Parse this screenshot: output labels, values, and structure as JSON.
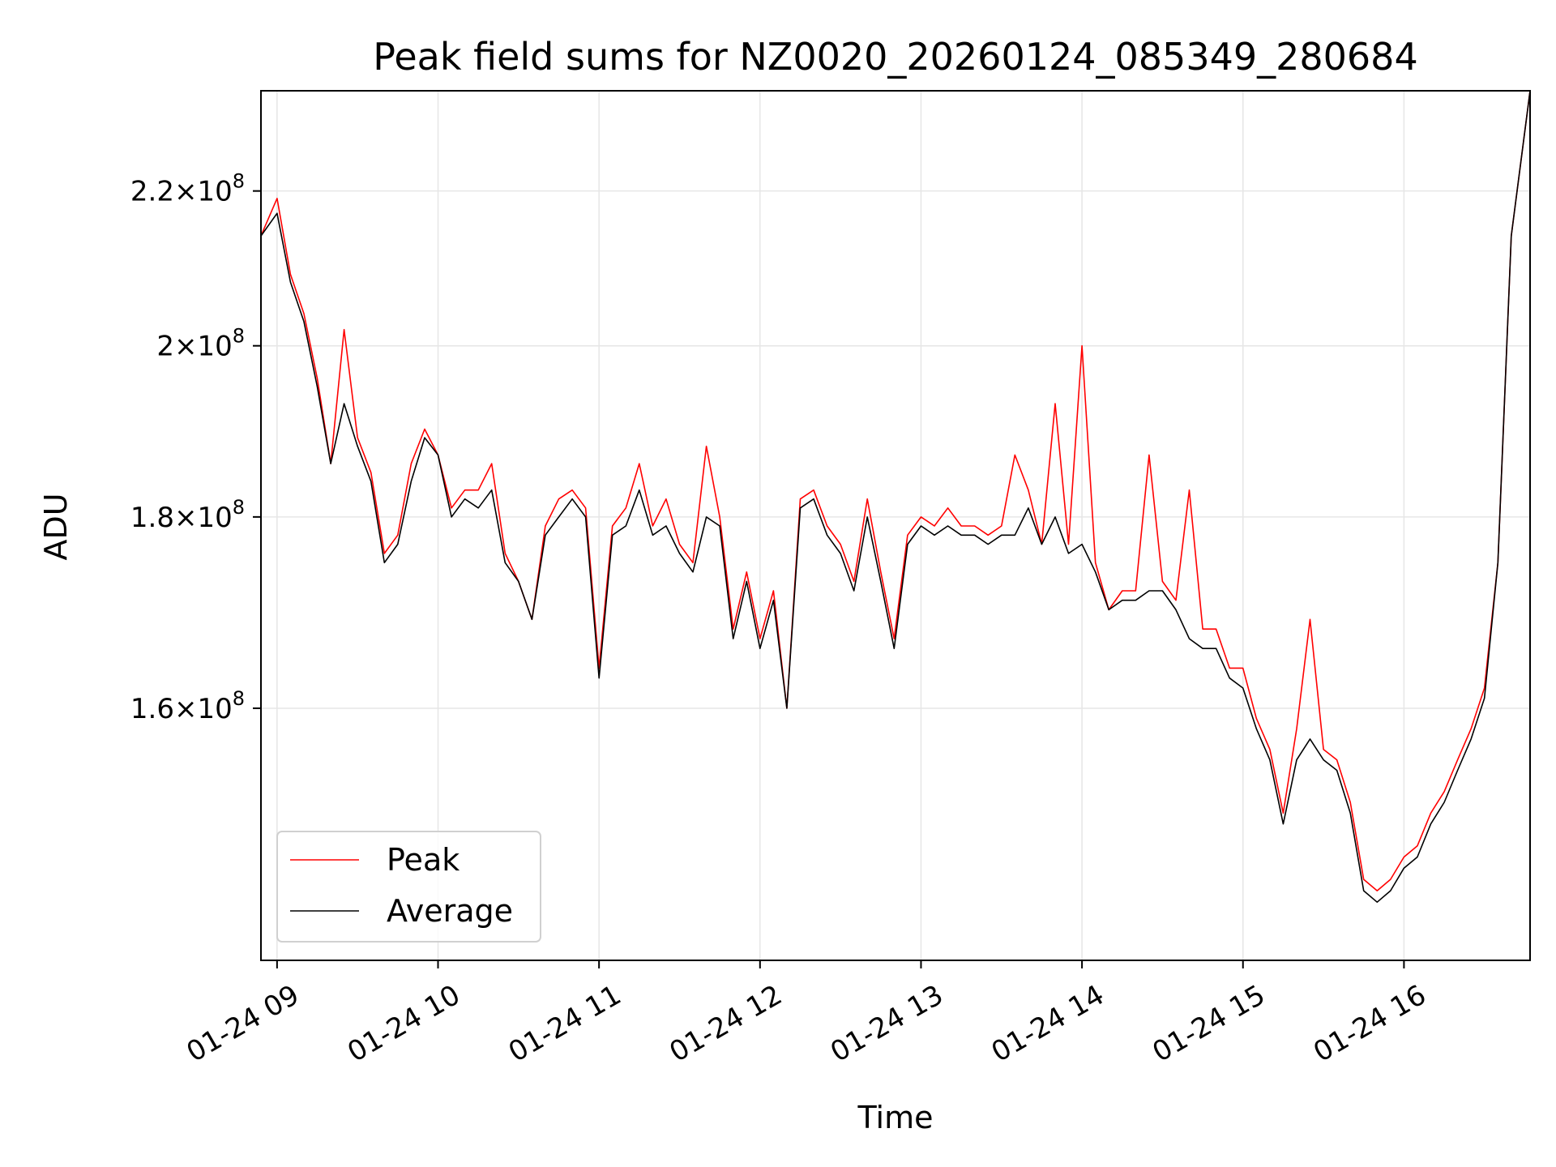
{
  "chart_data": {
    "type": "line",
    "title": "Peak field sums for NZ0020_20260124_085349_280684",
    "xlabel": "Time",
    "ylabel": "ADU",
    "y_scale": "log",
    "ylim": [
      137000000,
      234000000
    ],
    "xlim": [
      "2026-01-24 08:54",
      "2026-01-24 16:47"
    ],
    "x_ticks": [
      {
        "time": "2026-01-24 09:00",
        "label": "01-24 09"
      },
      {
        "time": "2026-01-24 10:00",
        "label": "01-24 10"
      },
      {
        "time": "2026-01-24 11:00",
        "label": "01-24 11"
      },
      {
        "time": "2026-01-24 12:00",
        "label": "01-24 12"
      },
      {
        "time": "2026-01-24 13:00",
        "label": "01-24 13"
      },
      {
        "time": "2026-01-24 14:00",
        "label": "01-24 14"
      },
      {
        "time": "2026-01-24 15:00",
        "label": "01-24 15"
      },
      {
        "time": "2026-01-24 16:00",
        "label": "01-24 16"
      }
    ],
    "y_ticks": [
      {
        "value": 160000000,
        "mantissa": "1.6",
        "exp": "8"
      },
      {
        "value": 180000000,
        "mantissa": "1.8",
        "exp": "8"
      },
      {
        "value": 200000000,
        "mantissa": "2",
        "exp": "8"
      },
      {
        "value": 220000000,
        "mantissa": "2.2",
        "exp": "8"
      }
    ],
    "grid": true,
    "legend_position": "lower-left",
    "series": [
      {
        "name": "Peak",
        "color": "#ff0000",
        "x": [
          "2026-01-24 08:54",
          "2026-01-24 09:00",
          "2026-01-24 09:05",
          "2026-01-24 09:10",
          "2026-01-24 09:15",
          "2026-01-24 09:20",
          "2026-01-24 09:25",
          "2026-01-24 09:30",
          "2026-01-24 09:35",
          "2026-01-24 09:40",
          "2026-01-24 09:45",
          "2026-01-24 09:50",
          "2026-01-24 09:55",
          "2026-01-24 10:00",
          "2026-01-24 10:05",
          "2026-01-24 10:10",
          "2026-01-24 10:15",
          "2026-01-24 10:20",
          "2026-01-24 10:25",
          "2026-01-24 10:30",
          "2026-01-24 10:35",
          "2026-01-24 10:40",
          "2026-01-24 10:45",
          "2026-01-24 10:50",
          "2026-01-24 10:55",
          "2026-01-24 11:00",
          "2026-01-24 11:05",
          "2026-01-24 11:10",
          "2026-01-24 11:15",
          "2026-01-24 11:20",
          "2026-01-24 11:25",
          "2026-01-24 11:30",
          "2026-01-24 11:35",
          "2026-01-24 11:40",
          "2026-01-24 11:45",
          "2026-01-24 11:50",
          "2026-01-24 11:55",
          "2026-01-24 12:00",
          "2026-01-24 12:05",
          "2026-01-24 12:10",
          "2026-01-24 12:15",
          "2026-01-24 12:20",
          "2026-01-24 12:25",
          "2026-01-24 12:30",
          "2026-01-24 12:35",
          "2026-01-24 12:40",
          "2026-01-24 12:45",
          "2026-01-24 12:50",
          "2026-01-24 12:55",
          "2026-01-24 13:00",
          "2026-01-24 13:05",
          "2026-01-24 13:10",
          "2026-01-24 13:15",
          "2026-01-24 13:20",
          "2026-01-24 13:25",
          "2026-01-24 13:30",
          "2026-01-24 13:35",
          "2026-01-24 13:40",
          "2026-01-24 13:45",
          "2026-01-24 13:50",
          "2026-01-24 13:55",
          "2026-01-24 14:00",
          "2026-01-24 14:05",
          "2026-01-24 14:10",
          "2026-01-24 14:15",
          "2026-01-24 14:20",
          "2026-01-24 14:25",
          "2026-01-24 14:30",
          "2026-01-24 14:35",
          "2026-01-24 14:40",
          "2026-01-24 14:45",
          "2026-01-24 14:50",
          "2026-01-24 14:55",
          "2026-01-24 15:00",
          "2026-01-24 15:05",
          "2026-01-24 15:10",
          "2026-01-24 15:15",
          "2026-01-24 15:20",
          "2026-01-24 15:25",
          "2026-01-24 15:30",
          "2026-01-24 15:35",
          "2026-01-24 15:40",
          "2026-01-24 15:45",
          "2026-01-24 15:50",
          "2026-01-24 15:55",
          "2026-01-24 16:00",
          "2026-01-24 16:05",
          "2026-01-24 16:10",
          "2026-01-24 16:15",
          "2026-01-24 16:20",
          "2026-01-24 16:25",
          "2026-01-24 16:30",
          "2026-01-24 16:35",
          "2026-01-24 16:40",
          "2026-01-24 16:47"
        ],
        "values": [
          214000000,
          219000000,
          209000000,
          204000000,
          196000000,
          186000000,
          202000000,
          189000000,
          185000000,
          176000000,
          178000000,
          186000000,
          190000000,
          187000000,
          181000000,
          183000000,
          183000000,
          186000000,
          176000000,
          173000000,
          169000000,
          179000000,
          182000000,
          183000000,
          181000000,
          164000000,
          179000000,
          181000000,
          186000000,
          179000000,
          182000000,
          177000000,
          175000000,
          188000000,
          180000000,
          168000000,
          174000000,
          167000000,
          172000000,
          160000000,
          182000000,
          183000000,
          179000000,
          177000000,
          173000000,
          182000000,
          174000000,
          167000000,
          178000000,
          180000000,
          179000000,
          181000000,
          179000000,
          179000000,
          178000000,
          179000000,
          187000000,
          183000000,
          177000000,
          193000000,
          177000000,
          200000000,
          175000000,
          170000000,
          172000000,
          172000000,
          187000000,
          173000000,
          171000000,
          183000000,
          168000000,
          168000000,
          164000000,
          164000000,
          159000000,
          156000000,
          150000000,
          158000000,
          169000000,
          156000000,
          155000000,
          151000000,
          144000000,
          143000000,
          144000000,
          146000000,
          147000000,
          150000000,
          152000000,
          155000000,
          158000000,
          162000000,
          175000000,
          214000000,
          234000000
        ]
      },
      {
        "name": "Average",
        "color": "#000000",
        "x": [
          "2026-01-24 08:54",
          "2026-01-24 09:00",
          "2026-01-24 09:05",
          "2026-01-24 09:10",
          "2026-01-24 09:15",
          "2026-01-24 09:20",
          "2026-01-24 09:25",
          "2026-01-24 09:30",
          "2026-01-24 09:35",
          "2026-01-24 09:40",
          "2026-01-24 09:45",
          "2026-01-24 09:50",
          "2026-01-24 09:55",
          "2026-01-24 10:00",
          "2026-01-24 10:05",
          "2026-01-24 10:10",
          "2026-01-24 10:15",
          "2026-01-24 10:20",
          "2026-01-24 10:25",
          "2026-01-24 10:30",
          "2026-01-24 10:35",
          "2026-01-24 10:40",
          "2026-01-24 10:45",
          "2026-01-24 10:50",
          "2026-01-24 10:55",
          "2026-01-24 11:00",
          "2026-01-24 11:05",
          "2026-01-24 11:10",
          "2026-01-24 11:15",
          "2026-01-24 11:20",
          "2026-01-24 11:25",
          "2026-01-24 11:30",
          "2026-01-24 11:35",
          "2026-01-24 11:40",
          "2026-01-24 11:45",
          "2026-01-24 11:50",
          "2026-01-24 11:55",
          "2026-01-24 12:00",
          "2026-01-24 12:05",
          "2026-01-24 12:10",
          "2026-01-24 12:15",
          "2026-01-24 12:20",
          "2026-01-24 12:25",
          "2026-01-24 12:30",
          "2026-01-24 12:35",
          "2026-01-24 12:40",
          "2026-01-24 12:45",
          "2026-01-24 12:50",
          "2026-01-24 12:55",
          "2026-01-24 13:00",
          "2026-01-24 13:05",
          "2026-01-24 13:10",
          "2026-01-24 13:15",
          "2026-01-24 13:20",
          "2026-01-24 13:25",
          "2026-01-24 13:30",
          "2026-01-24 13:35",
          "2026-01-24 13:40",
          "2026-01-24 13:45",
          "2026-01-24 13:50",
          "2026-01-24 13:55",
          "2026-01-24 14:00",
          "2026-01-24 14:05",
          "2026-01-24 14:10",
          "2026-01-24 14:15",
          "2026-01-24 14:20",
          "2026-01-24 14:25",
          "2026-01-24 14:30",
          "2026-01-24 14:35",
          "2026-01-24 14:40",
          "2026-01-24 14:45",
          "2026-01-24 14:50",
          "2026-01-24 14:55",
          "2026-01-24 15:00",
          "2026-01-24 15:05",
          "2026-01-24 15:10",
          "2026-01-24 15:15",
          "2026-01-24 15:20",
          "2026-01-24 15:25",
          "2026-01-24 15:30",
          "2026-01-24 15:35",
          "2026-01-24 15:40",
          "2026-01-24 15:45",
          "2026-01-24 15:50",
          "2026-01-24 15:55",
          "2026-01-24 16:00",
          "2026-01-24 16:05",
          "2026-01-24 16:10",
          "2026-01-24 16:15",
          "2026-01-24 16:20",
          "2026-01-24 16:25",
          "2026-01-24 16:30",
          "2026-01-24 16:35",
          "2026-01-24 16:40",
          "2026-01-24 16:47"
        ],
        "values": [
          214000000,
          217000000,
          208000000,
          203000000,
          195000000,
          186000000,
          193000000,
          188000000,
          184000000,
          175000000,
          177000000,
          184000000,
          189000000,
          187000000,
          180000000,
          182000000,
          181000000,
          183000000,
          175000000,
          173000000,
          169000000,
          178000000,
          180000000,
          182000000,
          180000000,
          163000000,
          178000000,
          179000000,
          183000000,
          178000000,
          179000000,
          176000000,
          174000000,
          180000000,
          179000000,
          167000000,
          173000000,
          166000000,
          171000000,
          160000000,
          181000000,
          182000000,
          178000000,
          176000000,
          172000000,
          180000000,
          173000000,
          166000000,
          177000000,
          179000000,
          178000000,
          179000000,
          178000000,
          178000000,
          177000000,
          178000000,
          178000000,
          181000000,
          177000000,
          180000000,
          176000000,
          177000000,
          174000000,
          170000000,
          171000000,
          171000000,
          172000000,
          172000000,
          170000000,
          167000000,
          166000000,
          166000000,
          163000000,
          162000000,
          158000000,
          155000000,
          149000000,
          155000000,
          157000000,
          155000000,
          154000000,
          150000000,
          143000000,
          142000000,
          143000000,
          145000000,
          146000000,
          149000000,
          151000000,
          154000000,
          157000000,
          161000000,
          175000000,
          214000000,
          234000000
        ]
      }
    ]
  }
}
